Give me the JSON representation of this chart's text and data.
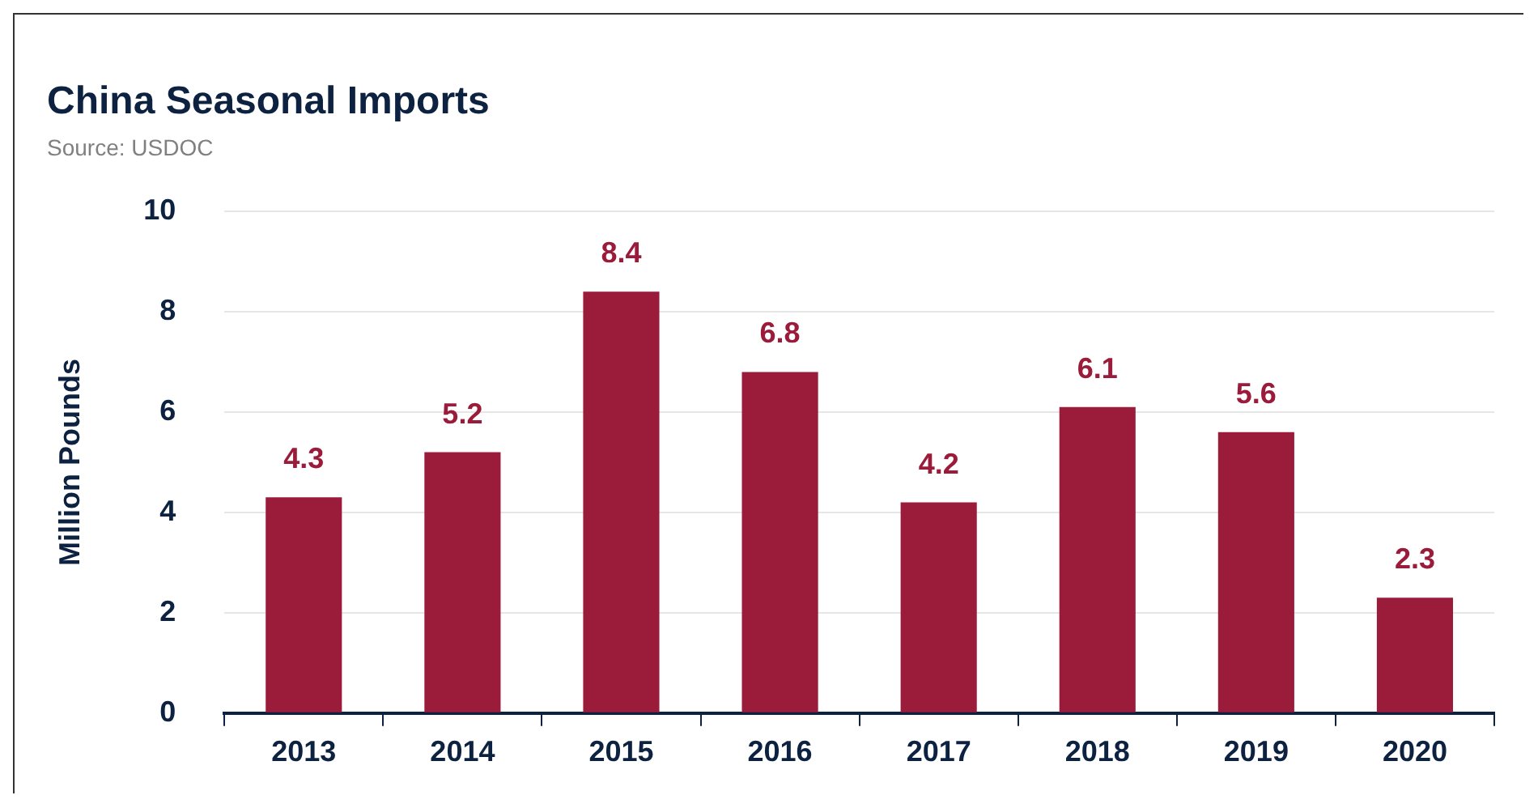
{
  "chart_data": {
    "type": "bar",
    "title": "China Seasonal Imports",
    "annotations": [
      "Source: USDOC"
    ],
    "ylabel": "Million Pounds",
    "categories": [
      "2013",
      "2014",
      "2015",
      "2016",
      "2017",
      "2018",
      "2019",
      "2020"
    ],
    "values": [
      4.3,
      5.2,
      8.4,
      6.8,
      4.2,
      6.1,
      5.6,
      2.3
    ],
    "color": "#9b1b3b",
    "ylim": [
      0,
      10
    ],
    "yticks": [
      0,
      2,
      4,
      6,
      8,
      10
    ],
    "grid": "y",
    "data_labels": true,
    "legend": false
  }
}
